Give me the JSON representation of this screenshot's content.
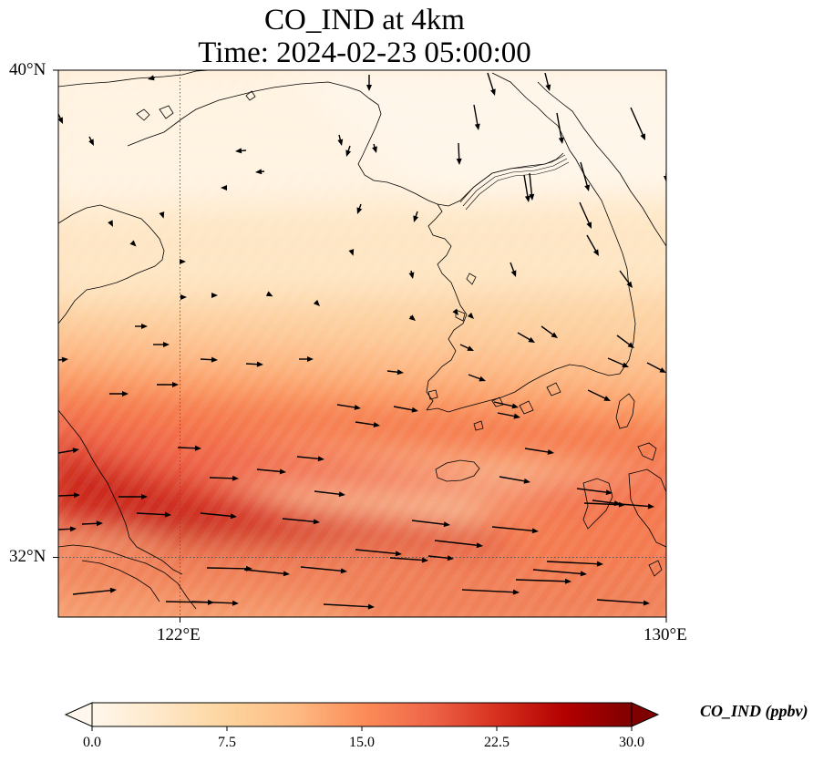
{
  "title_line1": "CO_IND at 4km",
  "title_line2": "Time: 2024-02-23 05:00:00",
  "axes": {
    "lat_labels": [
      {
        "value": 40,
        "text": "40°N"
      },
      {
        "value": 32,
        "text": "32°N"
      }
    ],
    "lon_labels": [
      {
        "value": 122,
        "text": "122°E"
      },
      {
        "value": 130,
        "text": "130°E"
      }
    ],
    "extent": {
      "lon_min": 120,
      "lon_max": 130,
      "lat_min": 31,
      "lat_max": 40
    },
    "gridlines": "dotted at 122°E and 32°N"
  },
  "colorbar": {
    "label": "CO_IND (ppbv)",
    "ticks": [
      "0.0",
      "7.5",
      "15.0",
      "22.5",
      "30.0"
    ],
    "range": [
      0,
      30
    ],
    "colormap": "OrRd",
    "extend": "both"
  },
  "colors": {
    "low": "#fff7ec",
    "mid": "#fdbb84",
    "high": "#d7301f",
    "max": "#7f0000"
  },
  "wind_vectors": "black arrows; northwest flow over Korea/Yellow Sea at top, westerly flow in the south"
}
